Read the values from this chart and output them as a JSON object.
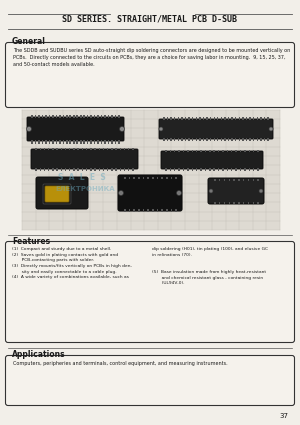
{
  "title": "SD SERIES. STRAIGHT/METAL PCB D-SUB",
  "bg_color": "#f2efe9",
  "page_num": "37",
  "general_heading": "General",
  "general_text": "The SDDB and SUDBU series SD auto-straight dip soldering connectors are designed to be mounted vertically on\nPCBs.  Directly connected to the circuits on PCBs, they are a choice for saving labor in mounting.  9, 15, 25, 37,\nand 50-contact models available.",
  "features_heading": "Features",
  "features_col1": "(1)  Compact and sturdy due to a metal shell.\n(2)  Saves gold in plating contacts with gold and\n       PCB-contacting parts with solder.\n(3)  Directly mounts/fits vertically on PCBs in high den-\n       sity and easily connectable to a cable plug.\n(4)  A wide variety of combinations available, such as",
  "features_col2_top": "dip soldering (H01), tin plating (100), and elusive GC\nin relinations (70).",
  "features_col2_bot": "(5)  Base insulation made from highly heat-resistant\n       and chemical resistant glass - containing resin\n       (UL94V-0).",
  "applications_heading": "Applications",
  "applications_text": "Computers, peripheries and terminals, control equipment, and measuring instruments.",
  "text_color": "#1a1a1a",
  "box_edge_color": "#333333",
  "box_face_color": "#f5f2ec",
  "grid_color": "#c0bdb5",
  "watermark1": "S  A  L  E  S",
  "watermark2": "ЕЛЕКТРОНИКА"
}
